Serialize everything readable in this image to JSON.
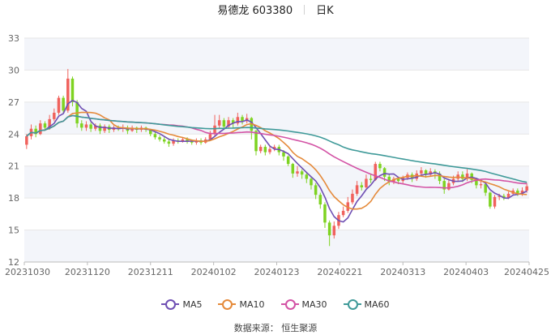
{
  "header": {
    "stock_name": "易德龙 603380",
    "period": "日K"
  },
  "source": "数据来源：  恒生聚源",
  "colors": {
    "up": "#f0625d",
    "down": "#7ed321",
    "ma5": "#6f4fb3",
    "ma10": "#e58a3a",
    "ma30": "#d353a5",
    "ma60": "#3f9a99",
    "band": "#f3f5fa",
    "grid": "#e6e6e6"
  },
  "chart_data": {
    "type": "candlestick",
    "ylim": [
      12,
      33
    ],
    "y_ticks": [
      "12",
      "15",
      "18",
      "21",
      "24",
      "27",
      "30",
      "33"
    ],
    "x_ticks": [
      "20231030",
      "20231120",
      "20231211",
      "20240102",
      "20240123",
      "20240221",
      "20240313",
      "20240403",
      "20240425"
    ],
    "legend": [
      {
        "name": "MA5",
        "color": "#6f4fb3"
      },
      {
        "name": "MA10",
        "color": "#e58a3a"
      },
      {
        "name": "MA30",
        "color": "#d353a5"
      },
      {
        "name": "MA60",
        "color": "#3f9a99"
      }
    ],
    "candles": [
      [
        23.0,
        23.8,
        22.6,
        24.0
      ],
      [
        23.8,
        24.5,
        23.5,
        24.9
      ],
      [
        24.5,
        24.0,
        23.7,
        24.8
      ],
      [
        24.0,
        25.0,
        23.9,
        25.3
      ],
      [
        25.0,
        24.6,
        24.3,
        25.2
      ],
      [
        24.6,
        25.4,
        24.4,
        25.8
      ],
      [
        25.4,
        26.0,
        25.2,
        26.4
      ],
      [
        26.0,
        27.4,
        25.8,
        27.6
      ],
      [
        27.4,
        26.2,
        26.0,
        27.6
      ],
      [
        26.2,
        29.2,
        26.0,
        30.1
      ],
      [
        29.2,
        27.0,
        26.6,
        29.4
      ],
      [
        27.0,
        25.0,
        24.6,
        27.2
      ],
      [
        25.0,
        24.6,
        24.3,
        25.3
      ],
      [
        24.6,
        24.9,
        24.3,
        25.2
      ],
      [
        24.9,
        24.5,
        24.2,
        25.1
      ],
      [
        24.5,
        24.8,
        24.3,
        25.0
      ],
      [
        24.8,
        24.3,
        24.0,
        25.0
      ],
      [
        24.3,
        24.7,
        24.1,
        24.9
      ],
      [
        24.7,
        24.4,
        24.1,
        24.9
      ],
      [
        24.4,
        24.6,
        24.2,
        24.8
      ],
      [
        24.6,
        24.5,
        24.3,
        24.8
      ],
      [
        24.5,
        24.6,
        24.2,
        24.9
      ],
      [
        24.6,
        24.3,
        24.0,
        24.8
      ],
      [
        24.3,
        24.6,
        24.2,
        24.8
      ],
      [
        24.6,
        24.4,
        24.1,
        24.7
      ],
      [
        24.4,
        24.6,
        24.2,
        24.8
      ],
      [
        24.6,
        24.4,
        24.2,
        24.7
      ],
      [
        24.4,
        24.0,
        23.8,
        24.5
      ],
      [
        24.0,
        23.7,
        23.5,
        24.2
      ],
      [
        23.7,
        23.5,
        23.3,
        23.9
      ],
      [
        23.5,
        23.3,
        23.1,
        23.7
      ],
      [
        23.3,
        23.1,
        22.8,
        23.5
      ],
      [
        23.1,
        23.4,
        22.9,
        23.6
      ],
      [
        23.4,
        23.3,
        23.1,
        23.6
      ],
      [
        23.3,
        23.5,
        23.2,
        23.7
      ],
      [
        23.5,
        23.3,
        23.1,
        23.7
      ],
      [
        23.3,
        23.2,
        23.0,
        23.5
      ],
      [
        23.2,
        23.4,
        23.0,
        23.6
      ],
      [
        23.4,
        23.2,
        23.0,
        23.6
      ],
      [
        23.2,
        23.5,
        23.1,
        23.7
      ],
      [
        23.5,
        24.0,
        23.4,
        24.3
      ],
      [
        24.0,
        24.8,
        23.8,
        25.8
      ],
      [
        24.8,
        25.3,
        24.5,
        25.8
      ],
      [
        25.3,
        24.7,
        24.4,
        25.5
      ],
      [
        24.7,
        25.3,
        24.5,
        25.6
      ],
      [
        25.3,
        25.0,
        24.6,
        25.5
      ],
      [
        25.0,
        25.6,
        24.8,
        26.0
      ],
      [
        25.6,
        25.2,
        24.9,
        25.8
      ],
      [
        25.2,
        25.5,
        25.0,
        25.9
      ],
      [
        25.5,
        24.3,
        23.5,
        25.6
      ],
      [
        24.3,
        22.4,
        22.0,
        24.4
      ],
      [
        22.4,
        22.8,
        22.2,
        23.0
      ],
      [
        22.8,
        22.3,
        22.0,
        23.0
      ],
      [
        22.3,
        22.6,
        22.1,
        22.9
      ],
      [
        22.6,
        22.8,
        22.4,
        23.0
      ],
      [
        22.8,
        22.3,
        22.0,
        23.0
      ],
      [
        22.3,
        21.9,
        21.5,
        22.5
      ],
      [
        21.9,
        21.2,
        21.0,
        22.0
      ],
      [
        21.2,
        20.3,
        19.9,
        21.3
      ],
      [
        20.3,
        20.5,
        20.0,
        21.0
      ],
      [
        20.5,
        20.2,
        19.8,
        20.7
      ],
      [
        20.2,
        19.8,
        19.4,
        20.4
      ],
      [
        19.8,
        19.2,
        18.8,
        20.0
      ],
      [
        19.2,
        18.3,
        17.9,
        19.4
      ],
      [
        18.3,
        17.4,
        17.0,
        18.5
      ],
      [
        17.4,
        15.7,
        15.2,
        17.6
      ],
      [
        15.7,
        14.5,
        13.5,
        15.9
      ],
      [
        14.5,
        15.4,
        14.2,
        15.8
      ],
      [
        15.4,
        16.4,
        15.1,
        16.7
      ],
      [
        16.4,
        16.8,
        16.2,
        17.2
      ],
      [
        16.8,
        17.6,
        16.6,
        18.1
      ],
      [
        17.6,
        18.4,
        17.4,
        18.8
      ],
      [
        18.4,
        19.2,
        18.2,
        19.6
      ],
      [
        19.2,
        19.0,
        18.7,
        19.5
      ],
      [
        19.0,
        19.8,
        18.9,
        20.2
      ],
      [
        19.8,
        19.7,
        19.4,
        20.3
      ],
      [
        19.7,
        21.2,
        19.6,
        21.4
      ],
      [
        21.2,
        20.8,
        20.5,
        21.4
      ],
      [
        20.8,
        20.0,
        19.6,
        20.9
      ],
      [
        20.0,
        19.5,
        19.2,
        20.2
      ],
      [
        19.5,
        19.8,
        19.3,
        20.0
      ],
      [
        19.8,
        19.6,
        19.3,
        20.0
      ],
      [
        19.6,
        19.9,
        19.4,
        20.1
      ],
      [
        19.9,
        20.2,
        19.7,
        20.4
      ],
      [
        20.2,
        19.8,
        19.5,
        20.4
      ],
      [
        19.8,
        20.3,
        19.6,
        20.6
      ],
      [
        20.3,
        20.6,
        20.1,
        20.9
      ],
      [
        20.6,
        20.2,
        19.9,
        20.7
      ],
      [
        20.2,
        20.5,
        20.0,
        20.8
      ],
      [
        20.5,
        20.3,
        19.8,
        20.7
      ],
      [
        20.3,
        19.6,
        19.3,
        20.5
      ],
      [
        19.6,
        18.8,
        18.4,
        19.8
      ],
      [
        18.8,
        19.4,
        18.7,
        19.7
      ],
      [
        19.4,
        19.8,
        19.2,
        20.1
      ],
      [
        19.8,
        20.2,
        19.6,
        20.5
      ],
      [
        20.2,
        19.8,
        19.5,
        20.5
      ],
      [
        19.8,
        20.3,
        19.6,
        20.7
      ],
      [
        20.3,
        19.7,
        19.4,
        20.4
      ],
      [
        19.7,
        19.2,
        18.9,
        19.9
      ],
      [
        19.2,
        19.3,
        18.9,
        19.6
      ],
      [
        19.3,
        18.5,
        18.2,
        19.4
      ],
      [
        18.5,
        17.2,
        17.0,
        18.6
      ],
      [
        17.2,
        18.1,
        17.0,
        18.3
      ],
      [
        18.1,
        18.2,
        17.8,
        18.4
      ],
      [
        18.2,
        18.0,
        17.8,
        18.4
      ],
      [
        18.0,
        18.4,
        17.9,
        18.6
      ],
      [
        18.4,
        18.7,
        18.2,
        18.9
      ],
      [
        18.7,
        18.4,
        18.2,
        18.9
      ],
      [
        18.4,
        18.7,
        18.2,
        19.0
      ],
      [
        18.7,
        19.1,
        18.5,
        19.4
      ]
    ]
  }
}
